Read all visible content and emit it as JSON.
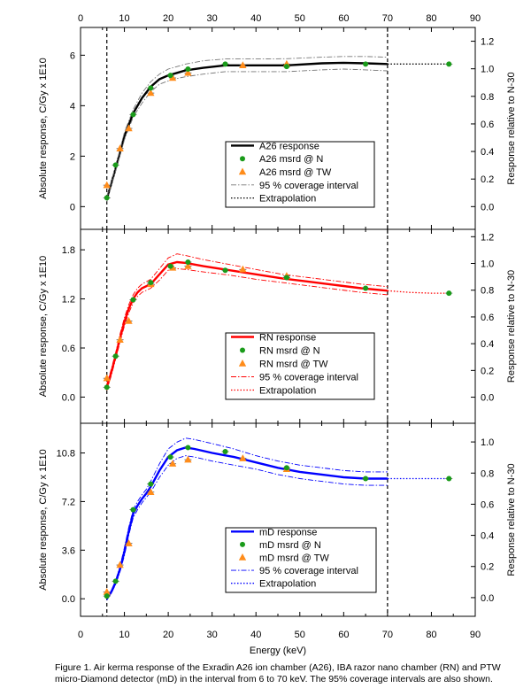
{
  "caption": "Figure 1. Air kerma response of the Exradin A26 ion chamber (A26), IBA razor nano chamber (RN) and PTW micro-Diamond detector (mD) in the interval from 6 to 70 keV. The 95% coverage intervals are also shown.",
  "chart_data": {
    "type": "line",
    "x_axis": {
      "label": "Energy (keV)",
      "range": [
        0,
        90
      ],
      "ticks": [
        "0",
        "10",
        "20",
        "30",
        "40",
        "50",
        "60",
        "70",
        "80",
        "90"
      ]
    },
    "vertical_reference_lines_keV": [
      6,
      70
    ],
    "panels": [
      {
        "id": "A26",
        "color": "#000000",
        "ylabel_left": "Absolute response, C/Gy x 1E10",
        "ylabel_right": "Response relative to N-30",
        "yrange_left": [
          -0.9,
          7.1
        ],
        "yticks_left": [
          "0",
          "2",
          "4",
          "6"
        ],
        "yrange_right": [
          -0.165,
          1.3
        ],
        "yticks_right": [
          "0.0",
          "0.2",
          "0.4",
          "0.6",
          "0.8",
          "1.0",
          "1.2"
        ],
        "legend": [
          "A26 response",
          "A26 msrd @ N",
          "A26 msrd @ TW",
          "95 % coverage interval",
          "Extrapolation"
        ],
        "series": [
          {
            "name": "A26 response",
            "x": [
              6,
              8,
              10,
              12,
              14,
              16,
              18,
              20,
              22,
              24,
              28,
              33,
              40,
              47,
              55,
              60,
              65,
              70
            ],
            "y": [
              0.3,
              1.5,
              2.8,
              3.7,
              4.3,
              4.75,
              5.05,
              5.2,
              5.3,
              5.4,
              5.5,
              5.6,
              5.6,
              5.6,
              5.68,
              5.7,
              5.68,
              5.65
            ]
          },
          {
            "name": "95 % coverage interval (upper)",
            "x": [
              6,
              8,
              10,
              12,
              14,
              16,
              18,
              20,
              22,
              24,
              28,
              33,
              40,
              47,
              55,
              60,
              65,
              70
            ],
            "y": [
              0.4,
              1.6,
              2.95,
              3.85,
              4.5,
              4.95,
              5.25,
              5.45,
              5.55,
              5.65,
              5.78,
              5.85,
              5.85,
              5.86,
              5.92,
              5.95,
              5.95,
              5.92
            ]
          },
          {
            "name": "95 % coverage interval (lower)",
            "x": [
              6,
              8,
              10,
              12,
              14,
              16,
              18,
              20,
              22,
              24,
              28,
              33,
              40,
              47,
              55,
              60,
              65,
              70
            ],
            "y": [
              0.2,
              1.4,
              2.65,
              3.55,
              4.1,
              4.55,
              4.85,
              4.98,
              5.08,
              5.15,
              5.25,
              5.35,
              5.35,
              5.35,
              5.42,
              5.45,
              5.42,
              5.38
            ]
          },
          {
            "name": "Extrapolation",
            "x": [
              70,
              84
            ],
            "y": [
              5.65,
              5.65
            ]
          }
        ],
        "msrd_N": {
          "x": [
            6,
            8,
            12,
            16,
            20.5,
            24.5,
            33,
            47,
            65,
            84
          ],
          "y": [
            0.35,
            1.65,
            3.65,
            4.7,
            5.2,
            5.45,
            5.65,
            5.55,
            5.65,
            5.65
          ]
        },
        "msrd_TW": {
          "x": [
            6,
            9,
            11,
            16,
            21,
            24.5,
            37,
            47
          ],
          "y": [
            0.85,
            2.3,
            3.1,
            4.5,
            5.1,
            5.3,
            5.6,
            5.65
          ]
        }
      },
      {
        "id": "RN",
        "color": "#ff0000",
        "ylabel_left": "Absolute response, C/Gy x 1E10",
        "ylabel_right": "Response relative to N-30",
        "yrange_left": [
          -0.32,
          2.05
        ],
        "yticks_left": [
          "0.0",
          "0.6",
          "1.2",
          "1.8"
        ],
        "yrange_right": [
          -0.195,
          1.255
        ],
        "yticks_right": [
          "0.0",
          "0.2",
          "0.4",
          "0.6",
          "0.8",
          "1.0",
          "1.2"
        ],
        "legend": [
          "RN response",
          "RN msrd @ N",
          "RN msrd @ TW",
          "95 % coverage interval",
          "Extrapolation"
        ],
        "series": [
          {
            "name": "RN response",
            "x": [
              6,
              7,
              8,
              9,
              10,
              11,
              12,
              13,
              14,
              16,
              18,
              20,
              22,
              24,
              28,
              34,
              40,
              46,
              52,
              58,
              64,
              70
            ],
            "y": [
              0.12,
              0.3,
              0.5,
              0.72,
              0.92,
              1.08,
              1.2,
              1.28,
              1.33,
              1.38,
              1.5,
              1.62,
              1.65,
              1.64,
              1.6,
              1.55,
              1.5,
              1.45,
              1.41,
              1.37,
              1.33,
              1.3
            ]
          },
          {
            "name": "95 % coverage interval (upper)",
            "x": [
              6,
              7,
              8,
              9,
              10,
              11,
              12,
              13,
              14,
              16,
              18,
              20,
              22,
              24,
              28,
              34,
              40,
              46,
              52,
              58,
              64,
              70
            ],
            "y": [
              0.16,
              0.34,
              0.54,
              0.77,
              0.97,
              1.13,
              1.25,
              1.33,
              1.38,
              1.44,
              1.57,
              1.7,
              1.75,
              1.73,
              1.68,
              1.62,
              1.56,
              1.5,
              1.46,
              1.42,
              1.38,
              1.35
            ]
          },
          {
            "name": "95 % coverage interval (lower)",
            "x": [
              6,
              7,
              8,
              9,
              10,
              11,
              12,
              13,
              14,
              16,
              18,
              20,
              22,
              24,
              28,
              34,
              40,
              46,
              52,
              58,
              64,
              70
            ],
            "y": [
              0.08,
              0.26,
              0.46,
              0.67,
              0.87,
              1.03,
              1.15,
              1.23,
              1.28,
              1.33,
              1.43,
              1.55,
              1.57,
              1.56,
              1.53,
              1.49,
              1.44,
              1.4,
              1.36,
              1.32,
              1.28,
              1.25
            ]
          },
          {
            "name": "Extrapolation",
            "x": [
              70,
              75,
              80,
              84
            ],
            "y": [
              1.3,
              1.28,
              1.27,
              1.27
            ]
          }
        ],
        "msrd_N": {
          "x": [
            6,
            8,
            12,
            16,
            20.5,
            24.5,
            33,
            47,
            65,
            84
          ],
          "y": [
            0.12,
            0.5,
            1.19,
            1.4,
            1.6,
            1.65,
            1.55,
            1.46,
            1.33,
            1.27
          ]
        },
        "msrd_TW": {
          "x": [
            6,
            9,
            11,
            16,
            21,
            24.5,
            37,
            47
          ],
          "y": [
            0.23,
            0.7,
            0.93,
            1.38,
            1.58,
            1.6,
            1.56,
            1.48
          ]
        }
      },
      {
        "id": "mD",
        "color": "#0000ff",
        "ylabel_left": "Absolute response, C/Gy x 1E10",
        "ylabel_right": "Response relative to N-30",
        "yrange_left": [
          -1.3,
          13.0
        ],
        "yticks_left": [
          "0.0",
          "3.6",
          "7.2",
          "10.8"
        ],
        "yrange_right": [
          -0.12,
          1.12
        ],
        "yticks_right": [
          "0.0",
          "0.2",
          "0.4",
          "0.6",
          "0.8",
          "1.0"
        ],
        "legend": [
          "mD response",
          "mD msrd @ N",
          "mD msrd @ TW",
          "95 % coverage interval",
          "Extrapolation"
        ],
        "series": [
          {
            "name": "mD response",
            "x": [
              6,
              7,
              8,
              9,
              10,
              11,
              12,
              13,
              14,
              15,
              16,
              18,
              20,
              22,
              24,
              26,
              30,
              35,
              40,
              45,
              50,
              55,
              60,
              65,
              70
            ],
            "y": [
              0.0,
              0.5,
              1.2,
              2.2,
              3.5,
              5.0,
              6.3,
              6.9,
              7.4,
              7.8,
              8.3,
              9.5,
              10.5,
              11.0,
              11.2,
              11.1,
              10.8,
              10.5,
              10.1,
              9.7,
              9.4,
              9.2,
              9.0,
              8.9,
              8.9
            ]
          },
          {
            "name": "95 % coverage interval (upper)",
            "x": [
              6,
              7,
              8,
              9,
              10,
              11,
              12,
              13,
              14,
              15,
              16,
              18,
              20,
              22,
              24,
              26,
              30,
              35,
              40,
              45,
              50,
              55,
              60,
              65,
              70
            ],
            "y": [
              0.1,
              0.6,
              1.35,
              2.4,
              3.8,
              5.3,
              6.6,
              7.2,
              7.7,
              8.1,
              8.7,
              10.0,
              11.1,
              11.6,
              11.9,
              11.8,
              11.5,
              11.1,
              10.6,
              10.2,
              9.9,
              9.7,
              9.5,
              9.4,
              9.4
            ]
          },
          {
            "name": "95 % coverage interval (lower)",
            "x": [
              6,
              7,
              8,
              9,
              10,
              11,
              12,
              13,
              14,
              15,
              16,
              18,
              20,
              22,
              24,
              26,
              30,
              35,
              40,
              45,
              50,
              55,
              60,
              65,
              70
            ],
            "y": [
              -0.1,
              0.4,
              1.05,
              2.0,
              3.2,
              4.7,
              6.0,
              6.6,
              7.1,
              7.5,
              7.9,
              9.0,
              9.9,
              10.4,
              10.6,
              10.5,
              10.2,
              9.9,
              9.6,
              9.2,
              8.9,
              8.7,
              8.5,
              8.4,
              8.4
            ]
          },
          {
            "name": "Extrapolation",
            "x": [
              70,
              84
            ],
            "y": [
              8.9,
              8.9
            ]
          }
        ],
        "msrd_N": {
          "x": [
            6,
            8,
            12,
            16,
            20.5,
            24.5,
            33,
            47,
            65,
            84
          ],
          "y": [
            0.2,
            1.3,
            6.6,
            8.5,
            10.5,
            11.2,
            10.9,
            9.7,
            8.9,
            8.9
          ]
        },
        "msrd_TW": {
          "x": [
            6,
            9,
            11,
            16,
            21,
            24.5,
            37,
            47
          ],
          "y": [
            0.5,
            2.5,
            4.1,
            7.9,
            10.0,
            10.3,
            10.4,
            9.6
          ]
        }
      }
    ]
  }
}
